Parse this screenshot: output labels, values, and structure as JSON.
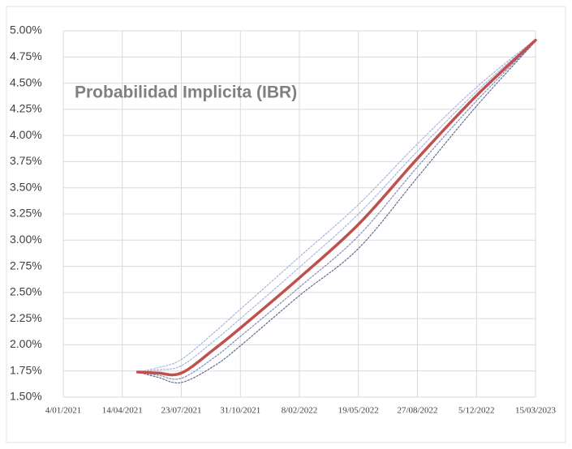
{
  "chart_data": {
    "type": "line",
    "title": "Probabilidad Implicita (IBR)",
    "x": [
      "2021-05-10",
      "2021-06-13",
      "2021-07-23",
      "2021-09-17",
      "2021-10-31",
      "2022-02-08",
      "2022-05-19",
      "2022-08-27",
      "2022-12-05",
      "2023-03-15"
    ],
    "series": [
      {
        "color": "#a8b4e0",
        "values": [
          1.74,
          1.78,
          1.86,
          2.12,
          2.34,
          2.84,
          3.34,
          3.92,
          4.46,
          4.92
        ]
      },
      {
        "color": "#a8b4e0",
        "values": [
          1.74,
          1.76,
          1.8,
          2.04,
          2.25,
          2.74,
          3.25,
          3.85,
          4.42,
          4.92
        ]
      },
      {
        "color": "#7f8cb8",
        "values": [
          1.74,
          1.71,
          1.68,
          1.88,
          2.08,
          2.55,
          3.04,
          3.7,
          4.33,
          4.9
        ]
      },
      {
        "color": "#5f6a90",
        "values": [
          1.74,
          1.69,
          1.64,
          1.8,
          1.99,
          2.47,
          2.92,
          3.6,
          4.28,
          4.9
        ]
      },
      {
        "color": "#c0504d",
        "values": [
          1.74,
          1.73,
          1.73,
          1.96,
          2.16,
          2.64,
          3.15,
          3.78,
          4.38,
          4.91
        ]
      }
    ],
    "xlim": [
      "2021-01-04",
      "2023-03-15"
    ],
    "xticks": [
      {
        "value": "2021-01-04",
        "label": "4/01/2021"
      },
      {
        "value": "2021-04-14",
        "label": "14/04/2021"
      },
      {
        "value": "2021-07-23",
        "label": "23/07/2021"
      },
      {
        "value": "2021-10-31",
        "label": "31/10/2021"
      },
      {
        "value": "2022-02-08",
        "label": "8/02/2022"
      },
      {
        "value": "2022-05-19",
        "label": "19/05/2022"
      },
      {
        "value": "2022-08-27",
        "label": "27/08/2022"
      },
      {
        "value": "2022-12-05",
        "label": "5/12/2022"
      },
      {
        "value": "2023-03-15",
        "label": "15/03/2023"
      }
    ],
    "ylim": [
      1.5,
      5.0
    ],
    "yticks": [
      {
        "value": 1.5,
        "label": "1.50%"
      },
      {
        "value": 1.75,
        "label": "1.75%"
      },
      {
        "value": 2.0,
        "label": "2.00%"
      },
      {
        "value": 2.25,
        "label": "2.25%"
      },
      {
        "value": 2.5,
        "label": "2.50%"
      },
      {
        "value": 2.75,
        "label": "2.75%"
      },
      {
        "value": 3.0,
        "label": "3.00%"
      },
      {
        "value": 3.25,
        "label": "3.25%"
      },
      {
        "value": 3.5,
        "label": "3.50%"
      },
      {
        "value": 3.75,
        "label": "3.75%"
      },
      {
        "value": 4.0,
        "label": "4.00%"
      },
      {
        "value": 4.25,
        "label": "4.25%"
      },
      {
        "value": 4.5,
        "label": "4.50%"
      },
      {
        "value": 4.75,
        "label": "4.75%"
      },
      {
        "value": 5.0,
        "label": "5.00%"
      }
    ],
    "grid": true
  }
}
